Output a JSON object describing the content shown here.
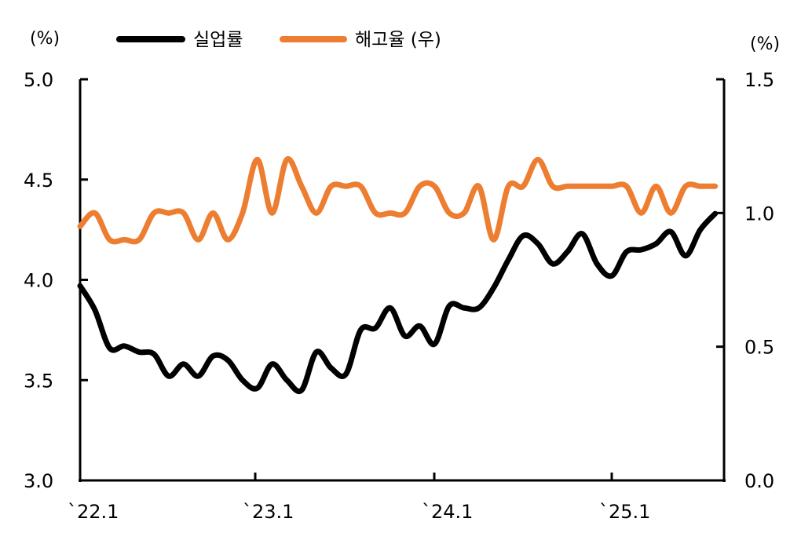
{
  "chart_data": {
    "type": "line",
    "left_unit": "(%)",
    "right_unit": "(%)",
    "x_tick_labels": [
      "`22.1",
      "`23.1",
      "`24.1",
      "`25.1"
    ],
    "x_tick_index": [
      0,
      12,
      24,
      36
    ],
    "left_ylim": [
      3.0,
      5.0
    ],
    "left_ticks": [
      "3.0",
      "3.5",
      "4.0",
      "4.5",
      "5.0"
    ],
    "right_ylim": [
      0.0,
      1.5
    ],
    "right_ticks": [
      "0.0",
      "0.5",
      "1.0",
      "1.5"
    ],
    "grid": false,
    "legend_position": "top",
    "series": [
      {
        "name": "실업률",
        "axis": "left",
        "color": "#000000",
        "values": [
          3.97,
          3.85,
          3.66,
          3.67,
          3.64,
          3.63,
          3.52,
          3.58,
          3.52,
          3.62,
          3.6,
          3.5,
          3.46,
          3.58,
          3.5,
          3.45,
          3.64,
          3.56,
          3.53,
          3.75,
          3.76,
          3.86,
          3.72,
          3.77,
          3.68,
          3.87,
          3.86,
          3.86,
          3.96,
          4.1,
          4.22,
          4.18,
          4.08,
          4.14,
          4.23,
          4.08,
          4.02,
          4.14,
          4.15,
          4.18,
          4.24,
          4.12,
          4.25,
          4.33
        ]
      },
      {
        "name": "해고율 (우)",
        "axis": "right",
        "color": "#ED7D31",
        "values": [
          0.95,
          1.0,
          0.9,
          0.9,
          0.9,
          1.0,
          1.0,
          1.0,
          0.9,
          1.0,
          0.9,
          1.0,
          1.2,
          1.0,
          1.2,
          1.1,
          1.0,
          1.1,
          1.1,
          1.1,
          1.0,
          1.0,
          1.0,
          1.1,
          1.1,
          1.0,
          1.0,
          1.1,
          0.9,
          1.1,
          1.1,
          1.2,
          1.1,
          1.1,
          1.1,
          1.1,
          1.1,
          1.1,
          1.0,
          1.1,
          1.0,
          1.1,
          1.1,
          1.1
        ]
      }
    ]
  }
}
